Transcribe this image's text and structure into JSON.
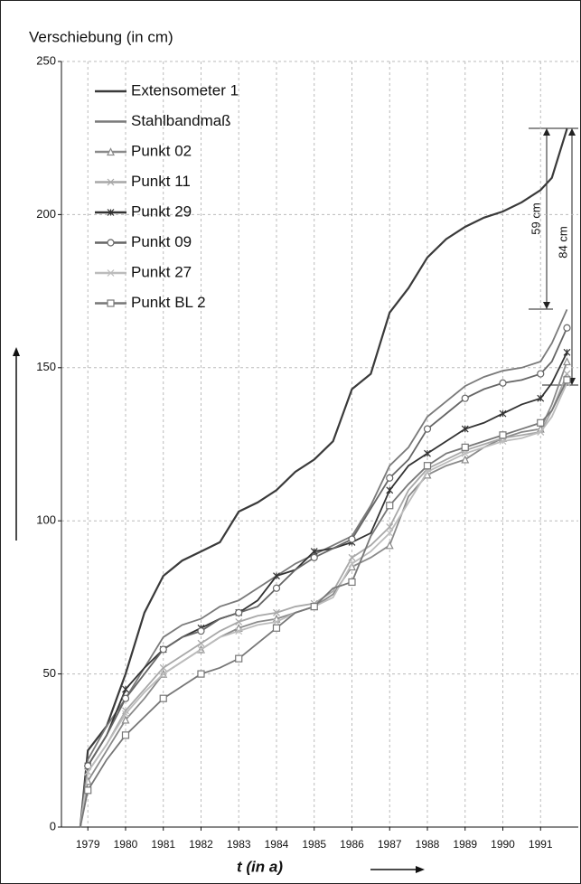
{
  "chart_data": {
    "type": "line",
    "ylabel": "Verschiebung (in cm)",
    "xlabel": "t (in a)",
    "x": [
      1978.8,
      1979,
      1979.5,
      1980,
      1980.5,
      1981,
      1981.5,
      1982,
      1982.5,
      1983,
      1983.5,
      1984,
      1984.5,
      1985,
      1985.5,
      1986,
      1986.5,
      1987,
      1987.5,
      1988,
      1988.5,
      1989,
      1989.5,
      1990,
      1990.5,
      1991,
      1991.3,
      1991.7
    ],
    "xlim": [
      1978.3,
      1992
    ],
    "xticks": [
      1979,
      1980,
      1981,
      1982,
      1983,
      1984,
      1985,
      1986,
      1987,
      1988,
      1989,
      1990,
      1991
    ],
    "ylim": [
      0,
      250
    ],
    "yticks": [
      0,
      50,
      100,
      150,
      200,
      250
    ],
    "grid": true,
    "legend": "upper left",
    "series": [
      {
        "name": "Extensometer 1",
        "color": "#3a3a3a",
        "marker": "none",
        "values": [
          0,
          25,
          33,
          50,
          70,
          82,
          87,
          90,
          93,
          103,
          106,
          110,
          116,
          120,
          126,
          143,
          148,
          168,
          176,
          186,
          192,
          196,
          199,
          201,
          204,
          208,
          212,
          228
        ]
      },
      {
        "name": "Stahlbandmaß",
        "color": "#7a7a7a",
        "marker": "none",
        "values": [
          0,
          22,
          33,
          42,
          52,
          62,
          66,
          68,
          72,
          74,
          78,
          82,
          86,
          89,
          92,
          95,
          105,
          118,
          124,
          134,
          139,
          144,
          147,
          149,
          150,
          152,
          158,
          169
        ]
      },
      {
        "name": "Punkt 02",
        "color": "#8a8a8a",
        "marker": "triangle",
        "values": [
          0,
          15,
          25,
          35,
          42,
          50,
          54,
          58,
          62,
          65,
          67,
          68,
          70,
          72,
          76,
          85,
          88,
          92,
          108,
          115,
          118,
          120,
          124,
          127,
          129,
          130,
          138,
          152
        ]
      },
      {
        "name": "Punkt 11",
        "color": "#a8a8a8",
        "marker": "x",
        "values": [
          0,
          18,
          27,
          38,
          45,
          52,
          56,
          60,
          64,
          67,
          69,
          70,
          72,
          73,
          77,
          88,
          92,
          98,
          110,
          117,
          120,
          123,
          125,
          127,
          128,
          129,
          136,
          148
        ]
      },
      {
        "name": "Punkt 29",
        "color": "#333333",
        "marker": "star",
        "values": [
          0,
          20,
          30,
          45,
          52,
          58,
          62,
          65,
          68,
          70,
          74,
          82,
          84,
          90,
          91,
          93,
          96,
          110,
          118,
          122,
          126,
          130,
          132,
          135,
          138,
          140,
          145,
          155
        ]
      },
      {
        "name": "Punkt 09",
        "color": "#666666",
        "marker": "circle",
        "values": [
          0,
          20,
          30,
          42,
          50,
          58,
          62,
          64,
          68,
          70,
          72,
          78,
          84,
          88,
          91,
          94,
          104,
          114,
          120,
          130,
          135,
          140,
          143,
          145,
          146,
          148,
          152,
          163
        ]
      },
      {
        "name": "Punkt 27",
        "color": "#bcbcbc",
        "marker": "x",
        "values": [
          0,
          18,
          27,
          37,
          44,
          50,
          54,
          58,
          62,
          64,
          66,
          67,
          70,
          72,
          75,
          86,
          90,
          96,
          106,
          116,
          119,
          122,
          124,
          126,
          127,
          129,
          134,
          145
        ]
      },
      {
        "name": "Punkt BL 2",
        "color": "#777777",
        "marker": "square",
        "values": [
          0,
          12,
          22,
          30,
          36,
          42,
          46,
          50,
          52,
          55,
          60,
          65,
          70,
          72,
          78,
          80,
          95,
          105,
          112,
          118,
          122,
          124,
          126,
          128,
          130,
          132,
          136,
          146
        ]
      }
    ],
    "annotations": [
      "59 cm",
      "84 cm"
    ]
  }
}
